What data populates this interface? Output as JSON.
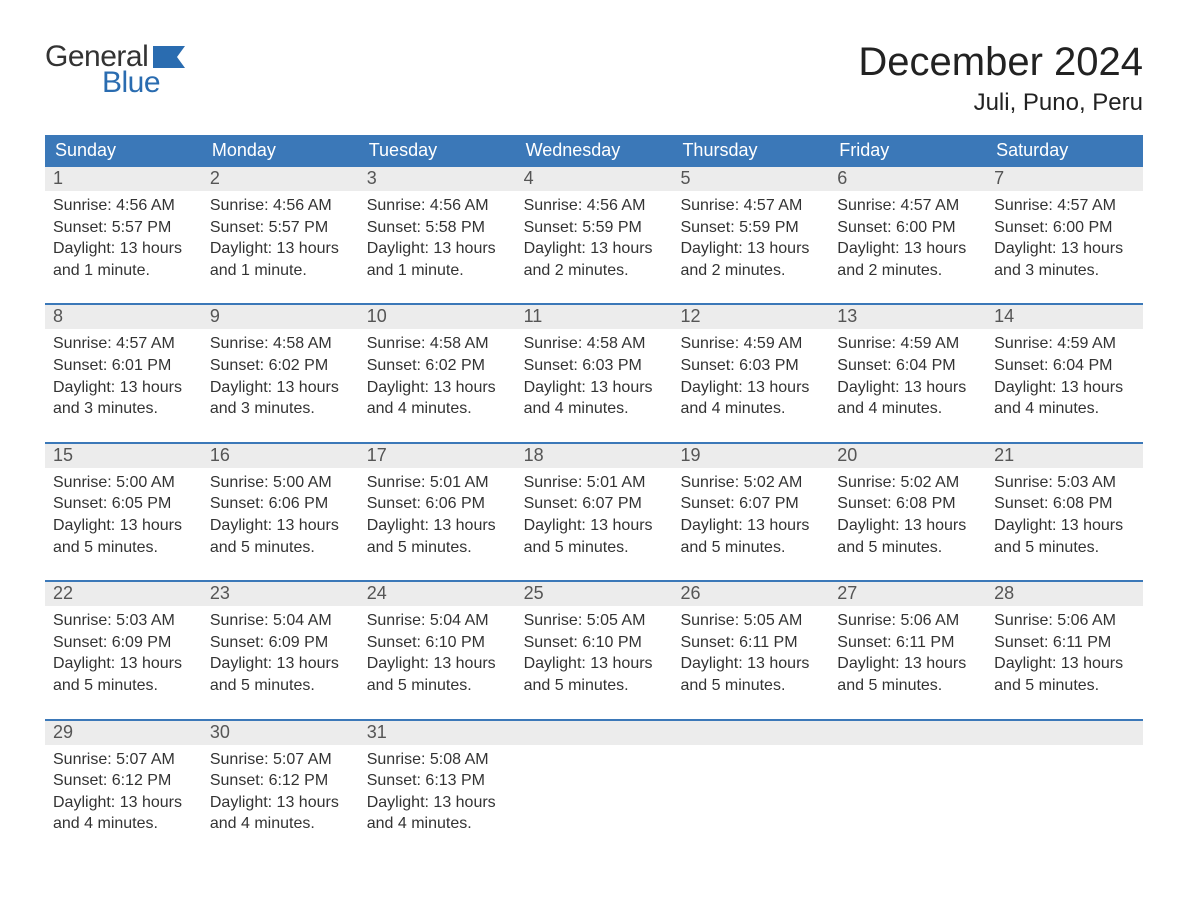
{
  "logo": {
    "text1": "General",
    "text2": "Blue",
    "flag_color": "#2a6cb0",
    "text1_color": "#333333"
  },
  "header": {
    "month": "December 2024",
    "location": "Juli, Puno, Peru"
  },
  "colors": {
    "header_bg": "#3b78b8",
    "header_text": "#ffffff",
    "daynum_bg": "#ececec",
    "daynum_text": "#555555",
    "body_text": "#333333",
    "week_border": "#3b78b8",
    "page_bg": "#ffffff"
  },
  "fonts": {
    "title_size_pt": 40,
    "location_size_pt": 24,
    "dayheader_size_pt": 18,
    "daynum_size_pt": 18,
    "body_size_pt": 16
  },
  "day_headers": [
    "Sunday",
    "Monday",
    "Tuesday",
    "Wednesday",
    "Thursday",
    "Friday",
    "Saturday"
  ],
  "weeks": [
    [
      {
        "n": "1",
        "sunrise": "Sunrise: 4:56 AM",
        "sunset": "Sunset: 5:57 PM",
        "daylight": "Daylight: 13 hours and 1 minute."
      },
      {
        "n": "2",
        "sunrise": "Sunrise: 4:56 AM",
        "sunset": "Sunset: 5:57 PM",
        "daylight": "Daylight: 13 hours and 1 minute."
      },
      {
        "n": "3",
        "sunrise": "Sunrise: 4:56 AM",
        "sunset": "Sunset: 5:58 PM",
        "daylight": "Daylight: 13 hours and 1 minute."
      },
      {
        "n": "4",
        "sunrise": "Sunrise: 4:56 AM",
        "sunset": "Sunset: 5:59 PM",
        "daylight": "Daylight: 13 hours and 2 minutes."
      },
      {
        "n": "5",
        "sunrise": "Sunrise: 4:57 AM",
        "sunset": "Sunset: 5:59 PM",
        "daylight": "Daylight: 13 hours and 2 minutes."
      },
      {
        "n": "6",
        "sunrise": "Sunrise: 4:57 AM",
        "sunset": "Sunset: 6:00 PM",
        "daylight": "Daylight: 13 hours and 2 minutes."
      },
      {
        "n": "7",
        "sunrise": "Sunrise: 4:57 AM",
        "sunset": "Sunset: 6:00 PM",
        "daylight": "Daylight: 13 hours and 3 minutes."
      }
    ],
    [
      {
        "n": "8",
        "sunrise": "Sunrise: 4:57 AM",
        "sunset": "Sunset: 6:01 PM",
        "daylight": "Daylight: 13 hours and 3 minutes."
      },
      {
        "n": "9",
        "sunrise": "Sunrise: 4:58 AM",
        "sunset": "Sunset: 6:02 PM",
        "daylight": "Daylight: 13 hours and 3 minutes."
      },
      {
        "n": "10",
        "sunrise": "Sunrise: 4:58 AM",
        "sunset": "Sunset: 6:02 PM",
        "daylight": "Daylight: 13 hours and 4 minutes."
      },
      {
        "n": "11",
        "sunrise": "Sunrise: 4:58 AM",
        "sunset": "Sunset: 6:03 PM",
        "daylight": "Daylight: 13 hours and 4 minutes."
      },
      {
        "n": "12",
        "sunrise": "Sunrise: 4:59 AM",
        "sunset": "Sunset: 6:03 PM",
        "daylight": "Daylight: 13 hours and 4 minutes."
      },
      {
        "n": "13",
        "sunrise": "Sunrise: 4:59 AM",
        "sunset": "Sunset: 6:04 PM",
        "daylight": "Daylight: 13 hours and 4 minutes."
      },
      {
        "n": "14",
        "sunrise": "Sunrise: 4:59 AM",
        "sunset": "Sunset: 6:04 PM",
        "daylight": "Daylight: 13 hours and 4 minutes."
      }
    ],
    [
      {
        "n": "15",
        "sunrise": "Sunrise: 5:00 AM",
        "sunset": "Sunset: 6:05 PM",
        "daylight": "Daylight: 13 hours and 5 minutes."
      },
      {
        "n": "16",
        "sunrise": "Sunrise: 5:00 AM",
        "sunset": "Sunset: 6:06 PM",
        "daylight": "Daylight: 13 hours and 5 minutes."
      },
      {
        "n": "17",
        "sunrise": "Sunrise: 5:01 AM",
        "sunset": "Sunset: 6:06 PM",
        "daylight": "Daylight: 13 hours and 5 minutes."
      },
      {
        "n": "18",
        "sunrise": "Sunrise: 5:01 AM",
        "sunset": "Sunset: 6:07 PM",
        "daylight": "Daylight: 13 hours and 5 minutes."
      },
      {
        "n": "19",
        "sunrise": "Sunrise: 5:02 AM",
        "sunset": "Sunset: 6:07 PM",
        "daylight": "Daylight: 13 hours and 5 minutes."
      },
      {
        "n": "20",
        "sunrise": "Sunrise: 5:02 AM",
        "sunset": "Sunset: 6:08 PM",
        "daylight": "Daylight: 13 hours and 5 minutes."
      },
      {
        "n": "21",
        "sunrise": "Sunrise: 5:03 AM",
        "sunset": "Sunset: 6:08 PM",
        "daylight": "Daylight: 13 hours and 5 minutes."
      }
    ],
    [
      {
        "n": "22",
        "sunrise": "Sunrise: 5:03 AM",
        "sunset": "Sunset: 6:09 PM",
        "daylight": "Daylight: 13 hours and 5 minutes."
      },
      {
        "n": "23",
        "sunrise": "Sunrise: 5:04 AM",
        "sunset": "Sunset: 6:09 PM",
        "daylight": "Daylight: 13 hours and 5 minutes."
      },
      {
        "n": "24",
        "sunrise": "Sunrise: 5:04 AM",
        "sunset": "Sunset: 6:10 PM",
        "daylight": "Daylight: 13 hours and 5 minutes."
      },
      {
        "n": "25",
        "sunrise": "Sunrise: 5:05 AM",
        "sunset": "Sunset: 6:10 PM",
        "daylight": "Daylight: 13 hours and 5 minutes."
      },
      {
        "n": "26",
        "sunrise": "Sunrise: 5:05 AM",
        "sunset": "Sunset: 6:11 PM",
        "daylight": "Daylight: 13 hours and 5 minutes."
      },
      {
        "n": "27",
        "sunrise": "Sunrise: 5:06 AM",
        "sunset": "Sunset: 6:11 PM",
        "daylight": "Daylight: 13 hours and 5 minutes."
      },
      {
        "n": "28",
        "sunrise": "Sunrise: 5:06 AM",
        "sunset": "Sunset: 6:11 PM",
        "daylight": "Daylight: 13 hours and 5 minutes."
      }
    ],
    [
      {
        "n": "29",
        "sunrise": "Sunrise: 5:07 AM",
        "sunset": "Sunset: 6:12 PM",
        "daylight": "Daylight: 13 hours and 4 minutes."
      },
      {
        "n": "30",
        "sunrise": "Sunrise: 5:07 AM",
        "sunset": "Sunset: 6:12 PM",
        "daylight": "Daylight: 13 hours and 4 minutes."
      },
      {
        "n": "31",
        "sunrise": "Sunrise: 5:08 AM",
        "sunset": "Sunset: 6:13 PM",
        "daylight": "Daylight: 13 hours and 4 minutes."
      },
      null,
      null,
      null,
      null
    ]
  ]
}
